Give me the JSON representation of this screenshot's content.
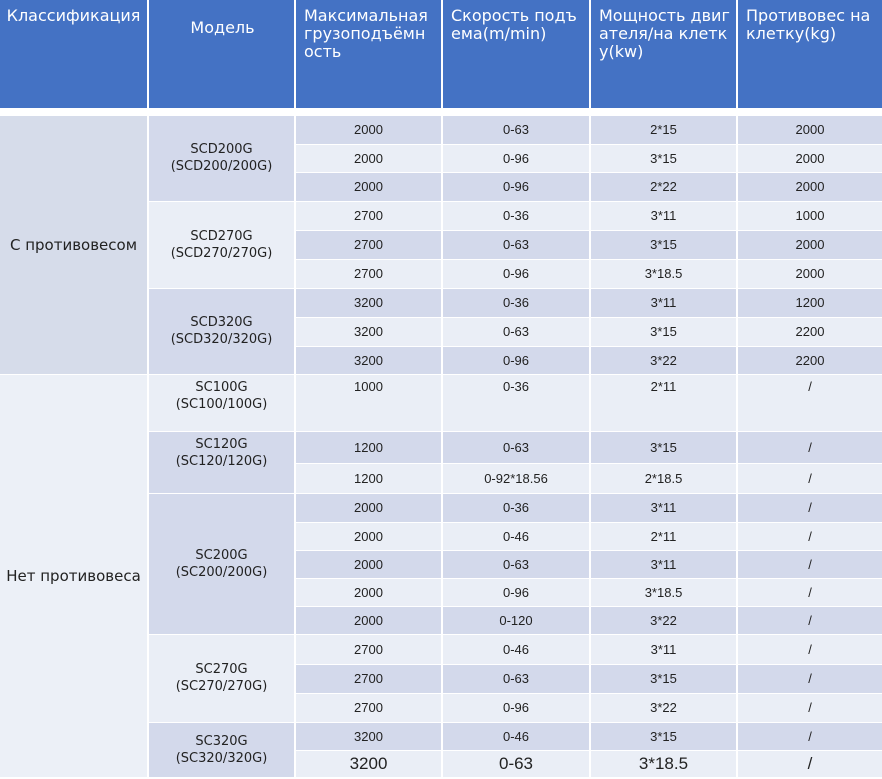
{
  "headers": [
    "Классификация",
    "Модель",
    "Максимальная грузоподъёмность",
    "Скорость подъема(m/min)",
    "Мощность двигателя/на клетку(kw)",
    "Противовес на клетку(kg)"
  ],
  "groups": [
    {
      "label": "С противовесом",
      "models": [
        {
          "name": "SCD200G\n(SCD200/200G)",
          "rows": [
            [
              "2000",
              "0-63",
              "2*15",
              "2000"
            ],
            [
              "2000",
              "0-96",
              "3*15",
              "2000"
            ],
            [
              "2000",
              "0-96",
              "2*22",
              "2000"
            ]
          ]
        },
        {
          "name": "SCD270G\n(SCD270/270G)",
          "rows": [
            [
              "2700",
              "0-36",
              "3*11",
              "1000"
            ],
            [
              "2700",
              "0-63",
              "3*15",
              "2000"
            ],
            [
              "2700",
              "0-96",
              "3*18.5",
              "2000"
            ]
          ]
        },
        {
          "name": "SCD320G\n(SCD320/320G)",
          "rows": [
            [
              "3200",
              "0-36",
              "3*11",
              "1200"
            ],
            [
              "3200",
              "0-63",
              "3*15",
              "2200"
            ],
            [
              "3200",
              "0-96",
              "3*22",
              "2200"
            ]
          ]
        }
      ]
    },
    {
      "label": "Нет противовеса",
      "models": [
        {
          "name": "SC100G\n(SC100/100G)",
          "rows": [
            [
              "1000",
              "0-36",
              "2*11",
              "/"
            ]
          ]
        },
        {
          "name": "SC120G\n(SC120/120G)",
          "rows": [
            [
              "1200",
              "0-63",
              "3*15",
              "/"
            ],
            [
              "1200",
              "0-92*18.56",
              "2*18.5",
              "/"
            ]
          ]
        },
        {
          "name": "SC200G\n(SC200/200G)",
          "rows": [
            [
              "2000",
              "0-36",
              "3*11",
              "/"
            ],
            [
              "2000",
              "0-46",
              "2*11",
              "/"
            ],
            [
              "2000",
              "0-63",
              "3*11",
              "/"
            ],
            [
              "2000",
              "0-96",
              "3*18.5",
              "/"
            ],
            [
              "2000",
              "0-120",
              "3*22",
              "/"
            ]
          ]
        },
        {
          "name": "SC270G\n(SC270/270G)",
          "rows": [
            [
              "2700",
              "0-46",
              "3*11",
              "/"
            ],
            [
              "2700",
              "0-63",
              "3*15",
              "/"
            ],
            [
              "2700",
              "0-96",
              "3*22",
              "/"
            ]
          ]
        },
        {
          "name": "SC320G\n(SC320/320G)",
          "rows": [
            [
              "3200",
              "0-46",
              "3*15",
              "/"
            ],
            [
              "3200",
              "0-63",
              "3*18.5",
              "/"
            ]
          ]
        }
      ]
    }
  ]
}
